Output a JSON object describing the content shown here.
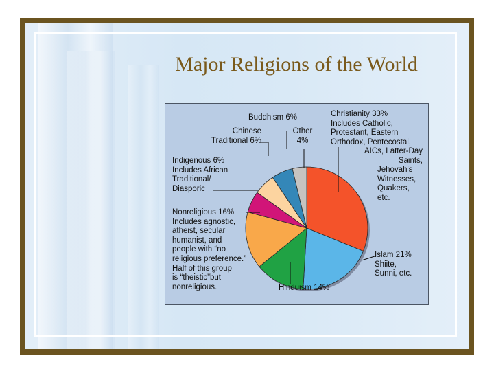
{
  "slide": {
    "title": "Major Religions of the World"
  },
  "colors": {
    "frame": "#6b5420",
    "title": "#7a5a1c",
    "chart_background": "#b9cce4"
  },
  "chart_data": {
    "type": "pie",
    "title": "",
    "slices": [
      {
        "name": "Christianity",
        "value": 33,
        "color": "#f4532a"
      },
      {
        "name": "Islam",
        "value": 21,
        "color": "#5bb6e8"
      },
      {
        "name": "Hinduism",
        "value": 14,
        "color": "#20a244"
      },
      {
        "name": "Nonreligious",
        "value": 16,
        "color": "#f9a84a"
      },
      {
        "name": "Indigenous",
        "value": 6,
        "color": "#d11578"
      },
      {
        "name": "Chinese Traditional",
        "value": 6,
        "color": "#fcd4a0"
      },
      {
        "name": "Buddhism",
        "value": 6,
        "color": "#3487b8"
      },
      {
        "name": "Other",
        "value": 4,
        "color": "#c6c3c0"
      }
    ],
    "labels": {
      "christianity": [
        "Christianity 33%",
        "Includes Catholic,",
        "Protestant, Eastern",
        "Orthodox, Pentecostal,",
        "AICs, Latter-Day",
        "Saints,",
        "Jehovah's",
        "Witnesses,",
        "Quakers,",
        "etc."
      ],
      "islam": [
        "Islam 21%",
        "Shiite,",
        "Sunni, etc."
      ],
      "hinduism": [
        "Hinduism 14%"
      ],
      "nonreligious": [
        "Nonreligious 16%",
        "Includes agnostic,",
        "atheist, secular",
        "humanist, and",
        "people with “no",
        "religious preference.”",
        "Half of this group",
        "is “theistic”but",
        "nonreligious."
      ],
      "indigenous": [
        "Indigenous 6%",
        "Includes African",
        "Traditional/",
        "Diasporic"
      ],
      "chinese": [
        "Chinese",
        "Traditional 6%"
      ],
      "buddhism": [
        "Buddhism 6%"
      ],
      "other": [
        "Other",
        "4%"
      ]
    }
  }
}
